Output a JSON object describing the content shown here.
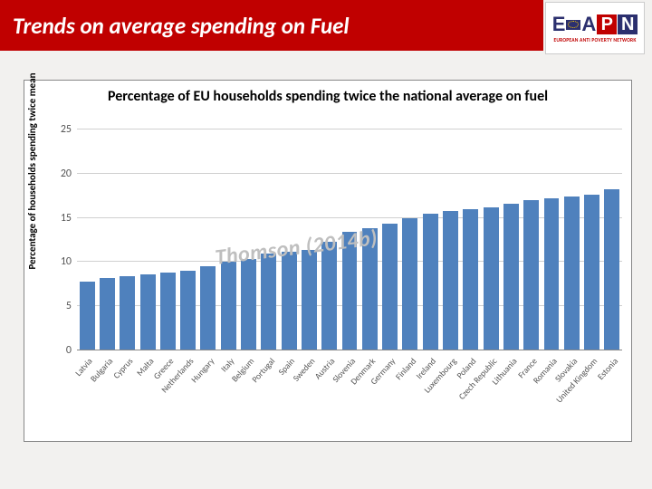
{
  "header": {
    "title": "Trends on average spending on Fuel",
    "bar_color": "#c00000",
    "title_color": "#ffffff",
    "title_fontsize": 25
  },
  "logo": {
    "letters": {
      "e": "E",
      "a": "A",
      "p": "P",
      "n": "N"
    },
    "subtitle": "EUROPEAN ANTI POVERTY NETWORK"
  },
  "chart": {
    "type": "bar",
    "title": "Percentage of EU households spending twice the national average on fuel",
    "title_fontsize": 16,
    "y_axis_label": "Percentage of households spending twice mean",
    "label_fontsize": 11,
    "ylim": [
      0,
      25
    ],
    "ytick_step": 5,
    "yticks": [
      0,
      5,
      10,
      15,
      20,
      25
    ],
    "background_color": "#ffffff",
    "grid_color": "#d0d0d0",
    "bar_color": "#4f81bd",
    "bar_width": 0.76,
    "categories": [
      "Latvia",
      "Bulgaria",
      "Cyprus",
      "Malta",
      "Greece",
      "Netherlands",
      "Hungary",
      "Italy",
      "Belgium",
      "Portugal",
      "Spain",
      "Sweden",
      "Austria",
      "Slovenia",
      "Denmark",
      "Germany",
      "Finland",
      "Ireland",
      "Luxembourg",
      "Poland",
      "Czech Republic",
      "Lithuania",
      "France",
      "Romania",
      "Slovakia",
      "United Kingdom",
      "Estonia"
    ],
    "values": [
      7.8,
      8.2,
      8.4,
      8.6,
      8.8,
      9.0,
      9.5,
      10.0,
      10.4,
      11.0,
      11.2,
      11.4,
      12.3,
      13.4,
      13.8,
      14.3,
      15.0,
      15.5,
      15.8,
      16.0,
      16.2,
      16.6,
      17.0,
      17.2,
      17.4,
      17.6,
      18.2
    ],
    "watermark": "Thomson (2014b)",
    "watermark_color": "#bfbfbf",
    "watermark_fontsize": 24
  }
}
